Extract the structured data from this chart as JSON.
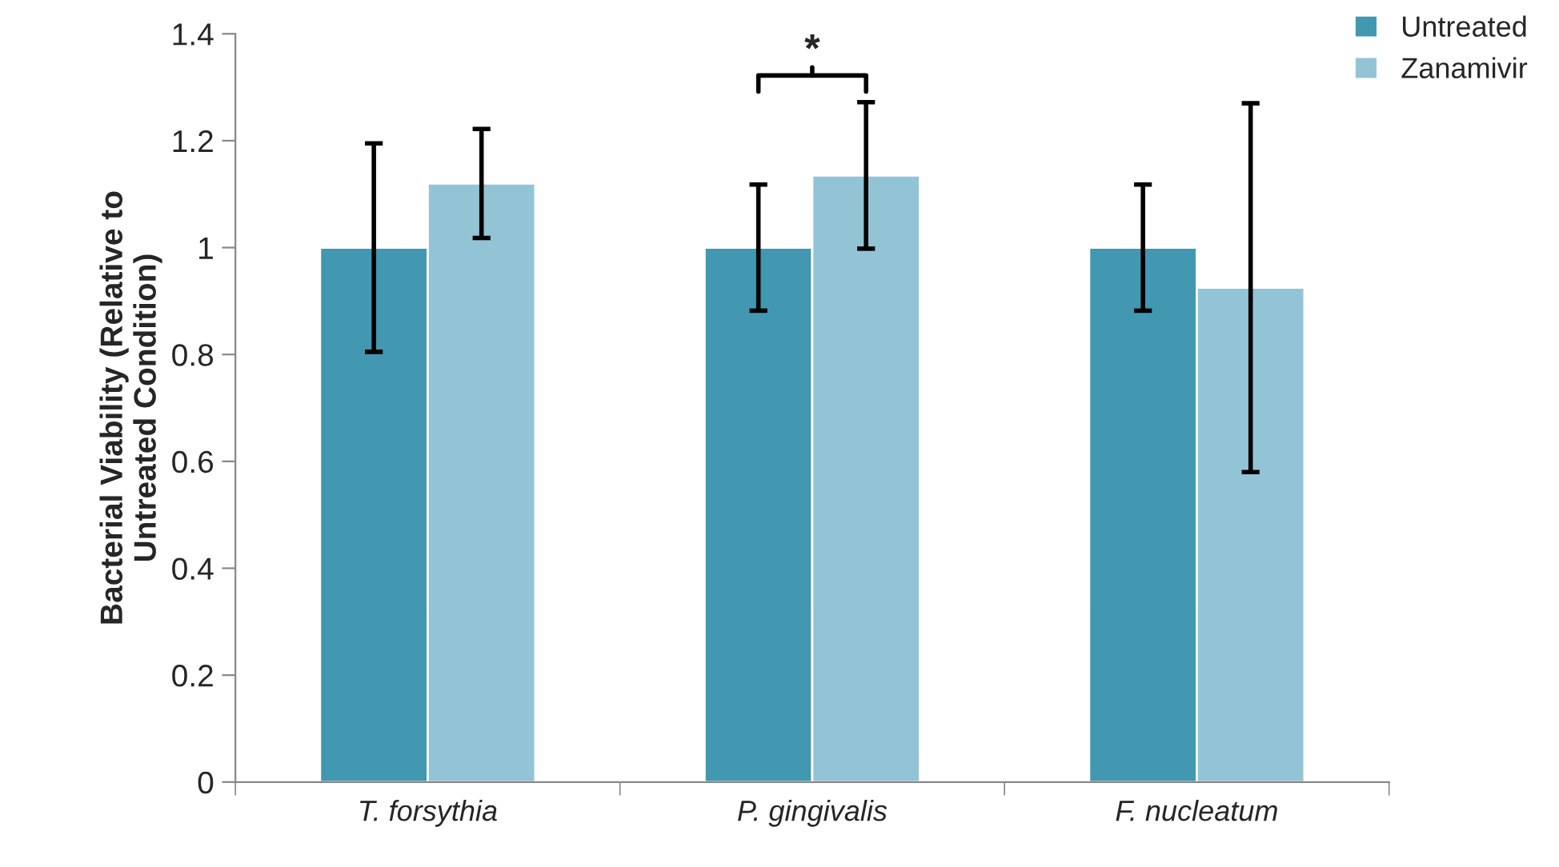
{
  "chart_data": {
    "type": "bar",
    "ylabel": "Bacterial Viability (Relative to\nUntreated Condition)",
    "categories": [
      "T. forsythia",
      "P. gingivalis",
      "F. nucleatum"
    ],
    "series": [
      {
        "name": "Untreated",
        "color": "#4198b0",
        "values": [
          1,
          1,
          1
        ],
        "errors": [
          0.195,
          0.118,
          0.118
        ]
      },
      {
        "name": "Zanamivir",
        "color": "#93c4d6",
        "values": [
          1.12,
          1.135,
          0.925
        ],
        "errors": [
          0.102,
          0.137,
          0.345
        ]
      }
    ],
    "ylim": [
      0,
      1.4
    ],
    "yticks": [
      0,
      0.2,
      0.4,
      0.6,
      0.8,
      1,
      1.2,
      1.4
    ],
    "grid": false,
    "legend": "top right",
    "annotations": [
      "*"
    ]
  }
}
